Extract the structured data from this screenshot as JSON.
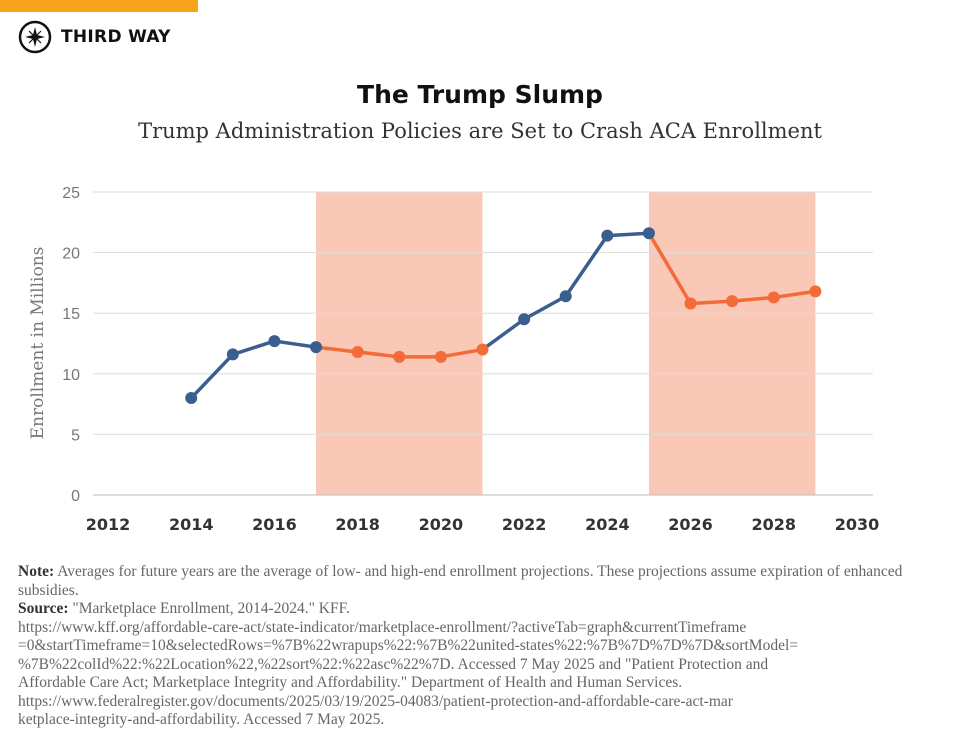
{
  "brand": {
    "name": "THIRD WAY",
    "accent": "#f7a41d"
  },
  "title": "The Trump Slump",
  "subtitle": "Trump Administration Policies are Set to Crash ACA Enrollment",
  "chart_data": {
    "type": "line",
    "ylabel": "Enrollment in Millions",
    "xlabel": "",
    "xlim": [
      2012,
      2030
    ],
    "ylim": [
      0,
      25
    ],
    "x_ticks": [
      2012,
      2014,
      2016,
      2018,
      2020,
      2022,
      2024,
      2026,
      2028,
      2030
    ],
    "y_ticks": [
      0,
      5,
      10,
      15,
      20,
      25
    ],
    "grid": "horizontal",
    "shaded_ranges": [
      [
        2017,
        2021
      ],
      [
        2025,
        2029
      ]
    ],
    "colors": {
      "actual": "#3a5f8e",
      "projected": "#f26b38",
      "shade": "#f9c8b6"
    },
    "x": [
      2014,
      2015,
      2016,
      2017,
      2018,
      2019,
      2020,
      2021,
      2022,
      2023,
      2024,
      2025,
      2026,
      2027,
      2028,
      2029
    ],
    "values": [
      8.0,
      11.6,
      12.7,
      12.2,
      11.8,
      11.4,
      11.4,
      12.0,
      14.5,
      16.4,
      21.4,
      21.6,
      15.8,
      16.0,
      16.3,
      16.8
    ],
    "segments": [
      {
        "color": "actual",
        "from": 2014,
        "to": 2017
      },
      {
        "color": "projected",
        "from": 2017,
        "to": 2021
      },
      {
        "color": "actual",
        "from": 2021,
        "to": 2025
      },
      {
        "color": "projected",
        "from": 2025,
        "to": 2029
      }
    ]
  },
  "notes": {
    "note_label": "Note:",
    "note_text": "Averages for future years are the average of low- and high-end enrollment projections. These projections assume expiration of enhanced subsidies.",
    "source_label": "Source:",
    "source_first": "\"Marketplace Enrollment, 2014-2024.\" KFF.",
    "source_lines": [
      "https://www.kff.org/affordable-care-act/state-indicator/marketplace-enrollment/?activeTab=graph&currentTimeframe",
      "=0&startTimeframe=10&selectedRows=%7B%22wrapups%22:%7B%22united-states%22:%7B%7D%7D%7D&sortModel=",
      "%7B%22colId%22:%22Location%22,%22sort%22:%22asc%22%7D. Accessed 7 May 2025 and \"Patient Protection and",
      "Affordable Care Act; Marketplace Integrity and Affordability.\" Department of Health and Human Services.",
      "https://www.federalregister.gov/documents/2025/03/19/2025-04083/patient-protection-and-affordable-care-act-mar",
      "ketplace-integrity-and-affordability. Accessed 7 May 2025."
    ]
  }
}
